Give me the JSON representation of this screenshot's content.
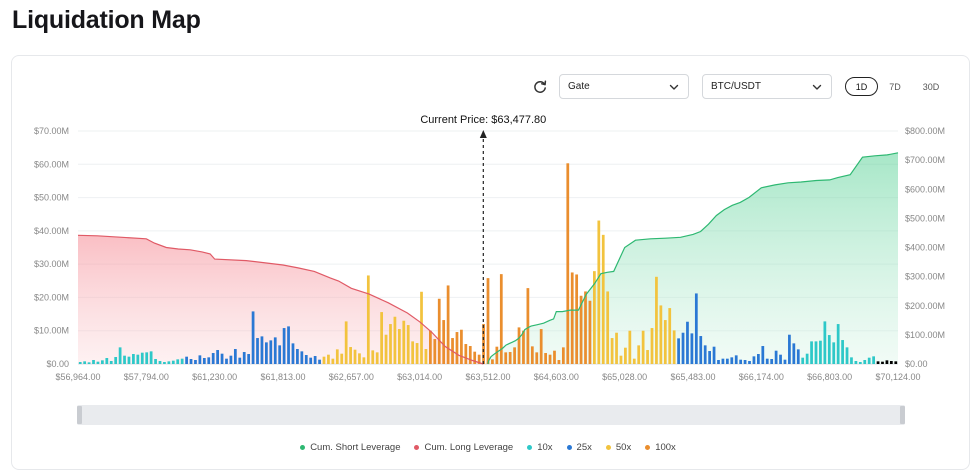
{
  "page": {
    "title": "Liquidation Map"
  },
  "controls": {
    "exchange": "Gate",
    "pair": "BTC/USDT",
    "ranges": [
      "1D",
      "7D",
      "30D"
    ],
    "active_range": "1D"
  },
  "colors": {
    "long": "#e05a66",
    "short": "#2eb872",
    "x10": "#2ec8c8",
    "x25": "#2a78d4",
    "x50": "#f2c33e",
    "x100": "#ea8e2e"
  },
  "chart_data": {
    "type": "bar",
    "current_price_label": "Current Price: $63,477.80",
    "current_price": 63477.8,
    "left_axis": {
      "ticks": [
        "$0.00",
        "$10.00M",
        "$20.00M",
        "$30.00M",
        "$40.00M",
        "$50.00M",
        "$60.00M",
        "$70.00M"
      ],
      "ylim": [
        0,
        70
      ]
    },
    "right_axis": {
      "ticks": [
        "$0.00",
        "$100.00M",
        "$200.00M",
        "$300.00M",
        "$400.00M",
        "$500.00M",
        "$600.00M",
        "$700.00M",
        "$800.00M"
      ],
      "ylim": [
        0,
        800
      ]
    },
    "x_tick_labels": [
      "$56,964.00",
      "$57,794.00",
      "$61,230.00",
      "$61,813.00",
      "$62,657.00",
      "$63,014.00",
      "$63,512.00",
      "$64,603.00",
      "$65,028.00",
      "$65,483.00",
      "$66,174.00",
      "$66,803.00",
      "$70,124.00"
    ],
    "bars": {
      "leverage": [
        "10x",
        "10x",
        "10x",
        "10x",
        "10x",
        "10x",
        "10x",
        "10x",
        "10x",
        "10x",
        "10x",
        "10x",
        "10x",
        "10x",
        "10x",
        "10x",
        "10x",
        "10x",
        "10x",
        "10x",
        "10x",
        "10x",
        "10x",
        "10x",
        "25x",
        "25x",
        "25x",
        "25x",
        "25x",
        "25x",
        "25x",
        "25x",
        "25x",
        "25x",
        "25x",
        "25x",
        "25x",
        "25x",
        "25x",
        "25x",
        "25x",
        "25x",
        "25x",
        "25x",
        "25x",
        "25x",
        "25x",
        "25x",
        "25x",
        "25x",
        "25x",
        "25x",
        "25x",
        "25x",
        "25x",
        "50x",
        "50x",
        "50x",
        "50x",
        "50x",
        "50x",
        "50x",
        "50x",
        "50x",
        "50x",
        "50x",
        "50x",
        "50x",
        "50x",
        "50x",
        "50x",
        "50x",
        "50x",
        "50x",
        "50x",
        "50x",
        "50x",
        "50x",
        "50x",
        "100x",
        "100x",
        "100x",
        "100x",
        "100x",
        "100x",
        "100x",
        "100x",
        "100x",
        "100x",
        "100x",
        "100x",
        "100x",
        "100x",
        "100x",
        "100x",
        "100x",
        "100x",
        "100x",
        "100x",
        "100x",
        "100x",
        "100x",
        "100x",
        "100x",
        "100x",
        "100x",
        "100x",
        "100x",
        "100x",
        "100x",
        "100x",
        "100x",
        "100x",
        "100x",
        "100x",
        "100x",
        "50x",
        "50x",
        "50x",
        "50x",
        "50x",
        "50x",
        "50x",
        "50x",
        "50x",
        "50x",
        "50x",
        "50x",
        "50x",
        "50x",
        "50x",
        "50x",
        "50x",
        "50x",
        "50x",
        "25x",
        "25x",
        "25x",
        "25x",
        "25x",
        "25x",
        "25x",
        "25x",
        "25x",
        "25x",
        "25x",
        "25x",
        "25x",
        "25x",
        "25x",
        "25x",
        "25x",
        "25x",
        "25x",
        "25x",
        "25x",
        "25x",
        "25x",
        "25x",
        "25x",
        "25x",
        "25x",
        "25x",
        "10x",
        "10x",
        "10x",
        "10x",
        "10x",
        "10x",
        "10x",
        "10x",
        "10x",
        "10x",
        "10x",
        "10x",
        "10x",
        "10x",
        "10x",
        "10x",
        "10x"
      ],
      "values": [
        0.6,
        0.8,
        0.5,
        1.2,
        0.7,
        1.1,
        1.8,
        0.9,
        2.1,
        5.0,
        2.5,
        2.2,
        3.0,
        2.8,
        3.4,
        3.5,
        3.8,
        1.5,
        0.9,
        0.6,
        0.8,
        1.0,
        1.4,
        1.6,
        2.2,
        1.5,
        1.2,
        2.6,
        1.8,
        2.0,
        3.3,
        4.2,
        3.1,
        1.6,
        2.5,
        4.5,
        1.9,
        3.6,
        3.0,
        15.8,
        7.8,
        8.3,
        6.5,
        7.1,
        8.0,
        5.6,
        10.8,
        11.3,
        6.2,
        4.5,
        3.8,
        2.7,
        1.9,
        2.4,
        1.3,
        2.2,
        2.8,
        1.6,
        4.4,
        3.1,
        12.8,
        5.1,
        4.3,
        3.2,
        2.0,
        26.6,
        4.1,
        3.5,
        15.6,
        8.8,
        12.0,
        14.2,
        10.5,
        13.0,
        11.7,
        6.8,
        6.3,
        21.7,
        4.5,
        10.0,
        7.5,
        19.6,
        13.2,
        23.6,
        7.8,
        9.6,
        10.3,
        6.0,
        5.4,
        3.7,
        2.8,
        12.0,
        25.8,
        1.4,
        5.2,
        27.0,
        3.5,
        3.6,
        5.0,
        11.0,
        10.0,
        22.8,
        5.3,
        3.5,
        10.5,
        3.3,
        2.8,
        4.0,
        1.2,
        5.0,
        60.3,
        27.5,
        26.9,
        20.5,
        21.8,
        19.0,
        27.9,
        43.1,
        38.8,
        21.8,
        7.8,
        9.4,
        2.5,
        4.9,
        10.0,
        1.6,
        5.6,
        10.0,
        4.2,
        10.8,
        26.2,
        17.6,
        13.2,
        16.8,
        10.1,
        7.7,
        9.4,
        12.7,
        9.2,
        21.2,
        8.4,
        5.6,
        3.9,
        5.2,
        1.2,
        1.6,
        1.6,
        2.0,
        2.6,
        1.3,
        1.2,
        0.9,
        2.3,
        3.0,
        5.4,
        1.6,
        1.5,
        4.0,
        2.8,
        1.3,
        8.8,
        6.2,
        4.4,
        1.9,
        3.1,
        6.8,
        6.8,
        7.0,
        12.8,
        8.7,
        6.5,
        12.0,
        7.2,
        5.0,
        2.0,
        0.9,
        0.6,
        1.2,
        1.9,
        2.3,
        0.8,
        0.7,
        1.1,
        0.9,
        0.8
      ]
    },
    "series": [
      {
        "name": "Cum. Short Leverage",
        "x": [
          63512,
          63520,
          63560,
          63600,
          63650,
          63700,
          63750,
          63800,
          63850,
          63900,
          63950,
          64000,
          64050,
          64100,
          64150,
          64200,
          64300,
          64400,
          64500,
          64560,
          64603,
          64640,
          64690,
          64740,
          64790,
          64840,
          64880,
          64920,
          64960,
          65028,
          65100,
          65200,
          65300,
          65400,
          65483,
          65560,
          65640,
          65720,
          65800,
          65880,
          65960,
          66050,
          66174,
          66300,
          66420,
          66540,
          66680,
          66803,
          67200,
          67800,
          68400,
          69000,
          69600,
          70124
        ],
        "values": [
          0,
          10,
          25,
          32,
          40,
          47,
          55,
          65,
          70,
          75,
          80,
          88,
          100,
          118,
          125,
          130,
          135,
          140,
          150,
          155,
          180,
          180,
          185,
          185,
          240,
          275,
          310,
          315,
          318,
          400,
          425,
          430,
          432,
          435,
          445,
          455,
          480,
          510,
          530,
          545,
          555,
          572,
          605,
          615,
          622,
          625,
          630,
          632,
          640,
          650,
          710,
          715,
          718,
          725
        ]
      },
      {
        "name": "Cum. Long Leverage",
        "x": [
          56964,
          57200,
          57500,
          57794,
          58200,
          58800,
          59400,
          60000,
          60600,
          61000,
          61230,
          61500,
          61813,
          62000,
          62200,
          62400,
          62500,
          62657,
          62750,
          62850,
          62950,
          63014,
          63100,
          63200,
          63300,
          63400,
          63477.8
        ],
        "values": [
          442,
          440,
          435,
          430,
          415,
          400,
          395,
          392,
          385,
          378,
          360,
          355,
          340,
          330,
          318,
          295,
          285,
          260,
          240,
          210,
          175,
          145,
          110,
          60,
          30,
          12,
          0
        ]
      }
    ],
    "legend": [
      {
        "label": "Cum. Short Leverage",
        "color": "#2eb872"
      },
      {
        "label": "Cum. Long Leverage",
        "color": "#e05a66"
      },
      {
        "label": "10x",
        "color": "#2ec8c8"
      },
      {
        "label": "25x",
        "color": "#2a78d4"
      },
      {
        "label": "50x",
        "color": "#f2c33e"
      },
      {
        "label": "100x",
        "color": "#ea8e2e"
      }
    ],
    "xlabel": "",
    "ylabel": ""
  }
}
